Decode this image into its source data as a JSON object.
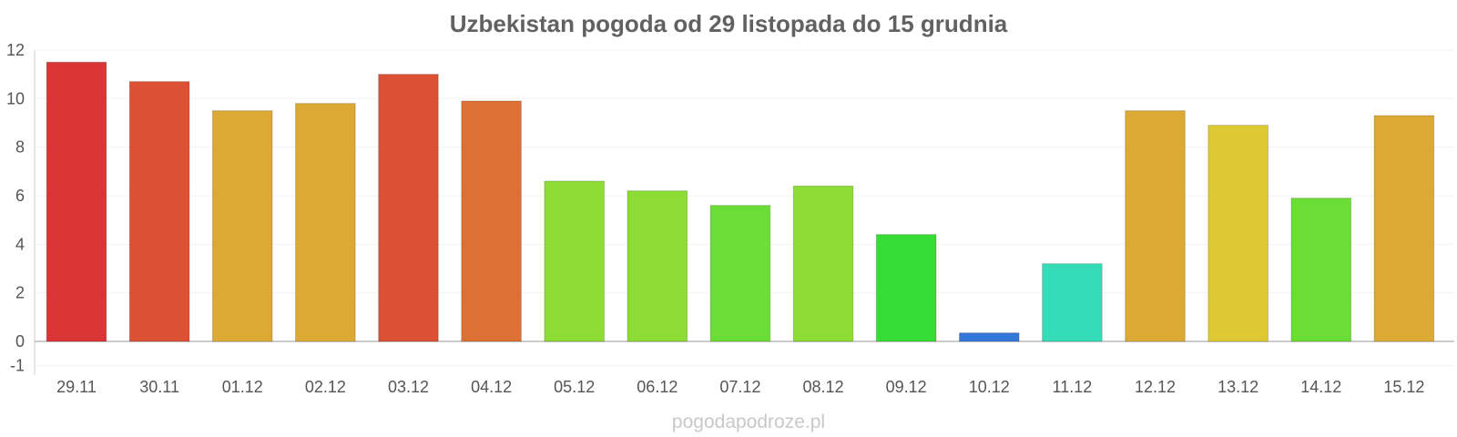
{
  "chart_data": {
    "type": "bar",
    "title": "Uzbekistan pogoda od 29 listopada do 15 grudnia",
    "xlabel": "",
    "ylabel": "",
    "ylim": [
      -1,
      12
    ],
    "yticks": [
      -1,
      0,
      2,
      4,
      6,
      8,
      10,
      12
    ],
    "grid": true,
    "categories": [
      "29.11",
      "30.11",
      "01.12",
      "02.12",
      "03.12",
      "04.12",
      "05.12",
      "06.12",
      "07.12",
      "08.12",
      "09.12",
      "10.12",
      "11.12",
      "12.12",
      "13.12",
      "14.12",
      "15.12"
    ],
    "values": [
      11.5,
      10.7,
      9.5,
      9.8,
      11.0,
      9.9,
      6.6,
      6.2,
      5.6,
      6.4,
      4.4,
      0.35,
      3.2,
      9.5,
      8.9,
      5.9,
      9.3
    ],
    "colors": [
      "#d93535",
      "#dc5034",
      "#dca934",
      "#dca934",
      "#dc5034",
      "#dd7034",
      "#8cdc34",
      "#8cdc34",
      "#6ade34",
      "#8cdc34",
      "#35dd35",
      "#3576d9",
      "#35dcb8",
      "#dca934",
      "#dcc934",
      "#6ade34",
      "#dca934"
    ]
  },
  "footer": {
    "credit": "pogodapodroze.pl"
  }
}
